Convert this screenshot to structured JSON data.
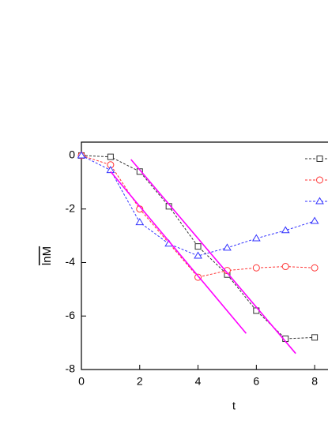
{
  "chart_data": {
    "type": "line",
    "x_label": "t",
    "y_label": "lnM",
    "xlim": [
      0,
      9
    ],
    "ylim": [
      -8,
      0.5
    ],
    "xticks": [
      0,
      2,
      4,
      6,
      8
    ],
    "yticks": [
      0,
      -2,
      -4,
      -6,
      -8
    ],
    "series": [
      {
        "color": "#333333",
        "marker": "square",
        "style": "dashed",
        "x": [
          0,
          1,
          2,
          3,
          4,
          5,
          6,
          7,
          8
        ],
        "values": [
          0,
          -0.05,
          -0.6,
          -1.9,
          -3.4,
          -4.45,
          -5.8,
          -6.85,
          -6.8
        ]
      },
      {
        "color": "#ff3333",
        "marker": "circle",
        "style": "dashed",
        "x": [
          0,
          1,
          2,
          4,
          5,
          6,
          7,
          8
        ],
        "values": [
          0,
          -0.35,
          -2.0,
          -4.55,
          -4.3,
          -4.2,
          -4.15,
          -4.2
        ]
      },
      {
        "color": "#3333ff",
        "marker": "triangle",
        "style": "dashed",
        "x": [
          0,
          1,
          2,
          3,
          4,
          5,
          6,
          7,
          8
        ],
        "values": [
          0,
          -0.55,
          -2.5,
          -3.3,
          -3.75,
          -3.45,
          -3.1,
          -2.8,
          -2.45
        ]
      },
      {
        "color": "#ff00ff",
        "marker": "none",
        "style": "solid",
        "x": [
          1,
          5.65
        ],
        "values": [
          -0.6,
          -6.65
        ]
      },
      {
        "color": "#ff00ff",
        "marker": "none",
        "style": "solid",
        "x": [
          1.7,
          7.35
        ],
        "values": [
          -0.15,
          -7.4
        ]
      }
    ]
  }
}
